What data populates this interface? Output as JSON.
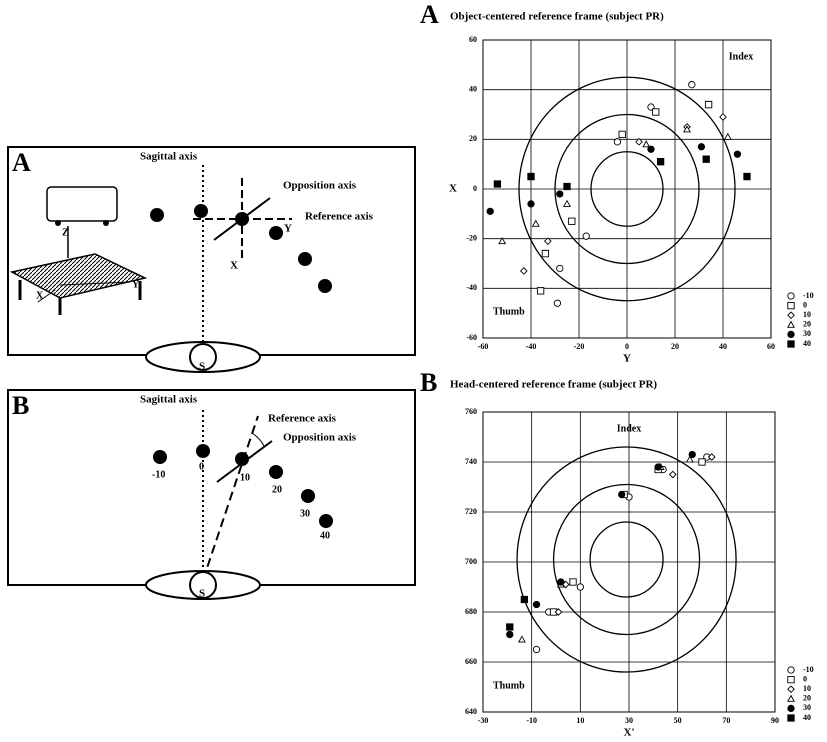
{
  "diagrams": [
    {
      "panel": "A",
      "sagittal": "Sagittal axis",
      "opposition": "Opposition axis",
      "reference": "Reference axis",
      "axis_y": "Y",
      "axis_x": "X",
      "subject": "S",
      "table_z": "Z",
      "table_x": "X",
      "table_y": "Y"
    },
    {
      "panel": "B",
      "sagittal": "Sagittal axis",
      "opposition": "Opposition axis",
      "reference": "Reference axis",
      "subject": "S",
      "targets": [
        "-10",
        "0",
        "10",
        "20",
        "30",
        "40"
      ]
    }
  ],
  "chart_data": [
    {
      "type": "scatter",
      "panel": "A",
      "title": "Object-centered reference frame (subject PR)",
      "x_label": "Y",
      "y_label": "X",
      "annotations": [
        "Index",
        "Thumb"
      ],
      "xlim": [
        -60,
        60
      ],
      "xticks": [
        -60,
        -40,
        -20,
        0,
        20,
        40,
        60
      ],
      "ylim": [
        -60,
        60
      ],
      "yticks": [
        -60,
        -40,
        -20,
        0,
        20,
        40,
        60
      ],
      "grid": true,
      "rings": {
        "cx": 0,
        "cy": 0,
        "radii": [
          15,
          30,
          45
        ]
      },
      "series": [
        {
          "name": "-10",
          "marker": "circle-open",
          "color": "#000",
          "x": [
            27,
            10,
            -4,
            -17,
            -28,
            -29
          ],
          "y": [
            42,
            33,
            19,
            -19,
            -32,
            -46
          ]
        },
        {
          "name": "0",
          "marker": "square-open",
          "color": "#000",
          "x": [
            34,
            12,
            -2,
            -23,
            -34,
            -36
          ],
          "y": [
            34,
            31,
            22,
            -13,
            -26,
            -41
          ]
        },
        {
          "name": "10",
          "marker": "diamond-open",
          "color": "#000",
          "x": [
            40,
            25,
            5,
            -33,
            -43
          ],
          "y": [
            29,
            25,
            19,
            -21,
            -33
          ]
        },
        {
          "name": "20",
          "marker": "triangle-open",
          "color": "#000",
          "x": [
            42,
            25,
            8,
            -25,
            -38,
            -52
          ],
          "y": [
            21,
            24,
            18,
            -6,
            -14,
            -21
          ]
        },
        {
          "name": "30",
          "marker": "circle-filled",
          "color": "#000",
          "x": [
            46,
            31,
            10,
            -28,
            -40,
            -57
          ],
          "y": [
            14,
            17,
            16,
            -2,
            -6,
            -9
          ]
        },
        {
          "name": "40",
          "marker": "square-filled",
          "color": "#000",
          "x": [
            50,
            33,
            14,
            -25,
            -40,
            -54
          ],
          "y": [
            5,
            12,
            11,
            1,
            5,
            2
          ]
        }
      ]
    },
    {
      "type": "scatter",
      "panel": "B",
      "title": "Head-centered reference frame (subject PR)",
      "x_label": "X'",
      "annotations": [
        "Index",
        "Thumb"
      ],
      "xlim": [
        -30,
        90
      ],
      "xticks": [
        -30,
        -10,
        10,
        30,
        50,
        70,
        90
      ],
      "ylim": [
        640,
        760
      ],
      "yticks": [
        640,
        660,
        680,
        700,
        720,
        740,
        760
      ],
      "grid": true,
      "rings": {
        "cx": 29,
        "cy": 701,
        "radii": [
          15,
          30,
          45
        ]
      },
      "series": [
        {
          "name": "-10",
          "marker": "circle-open",
          "color": "#000",
          "x": [
            62,
            44,
            30,
            10,
            -3,
            -8
          ],
          "y": [
            742,
            737,
            726,
            690,
            680,
            665
          ]
        },
        {
          "name": "0",
          "marker": "square-open",
          "color": "#000",
          "x": [
            60,
            42,
            28,
            7,
            -1
          ],
          "y": [
            740,
            737,
            727,
            692,
            680
          ]
        },
        {
          "name": "10",
          "marker": "diamond-open",
          "color": "#000",
          "x": [
            64,
            48,
            4,
            1
          ],
          "y": [
            742,
            735,
            691,
            680
          ]
        },
        {
          "name": "20",
          "marker": "triangle-open",
          "color": "#000",
          "x": [
            55,
            43,
            2,
            -14
          ],
          "y": [
            741,
            738,
            691,
            669
          ]
        },
        {
          "name": "30",
          "marker": "circle-filled",
          "color": "#000",
          "x": [
            56,
            42,
            27,
            2,
            -8,
            -19
          ],
          "y": [
            743,
            738,
            727,
            692,
            683,
            671
          ]
        },
        {
          "name": "40",
          "marker": "square-filled",
          "color": "#000",
          "x": [
            -13,
            -19
          ],
          "y": [
            685,
            674
          ]
        }
      ]
    }
  ]
}
